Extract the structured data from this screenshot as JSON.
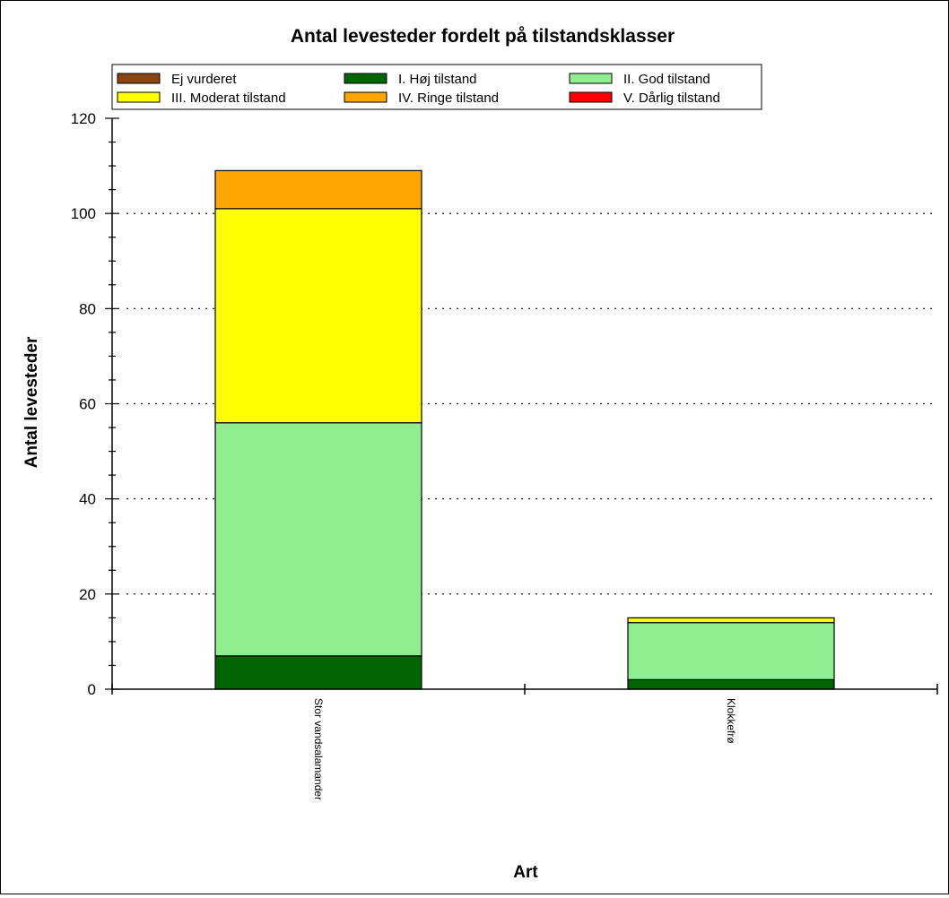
{
  "chart_data": {
    "type": "bar",
    "stacked": true,
    "title": "Antal levesteder fordelt på tilstandsklasser",
    "xlabel": "Art",
    "ylabel": "Antal levesteder",
    "ylim": [
      0,
      120
    ],
    "yticks": [
      0,
      20,
      40,
      60,
      80,
      100,
      120
    ],
    "grid": "horizontal-dotted",
    "legend_position": "top",
    "categories": [
      "Stor vandsalamander",
      "Klokkefrø"
    ],
    "series": [
      {
        "name": "Ej vurderet",
        "color": "#8b4513",
        "values": [
          0,
          0
        ]
      },
      {
        "name": "I. Høj tilstand",
        "color": "#006400",
        "values": [
          7,
          2
        ]
      },
      {
        "name": "II. God tilstand",
        "color": "#90ee90",
        "values": [
          49,
          12
        ]
      },
      {
        "name": "III. Moderat tilstand",
        "color": "#ffff00",
        "values": [
          45,
          1
        ]
      },
      {
        "name": "IV. Ringe tilstand",
        "color": "#ffa500",
        "values": [
          8,
          0
        ]
      },
      {
        "name": "V. Dårlig tilstand",
        "color": "#ff0000",
        "values": [
          0,
          0
        ]
      }
    ]
  }
}
